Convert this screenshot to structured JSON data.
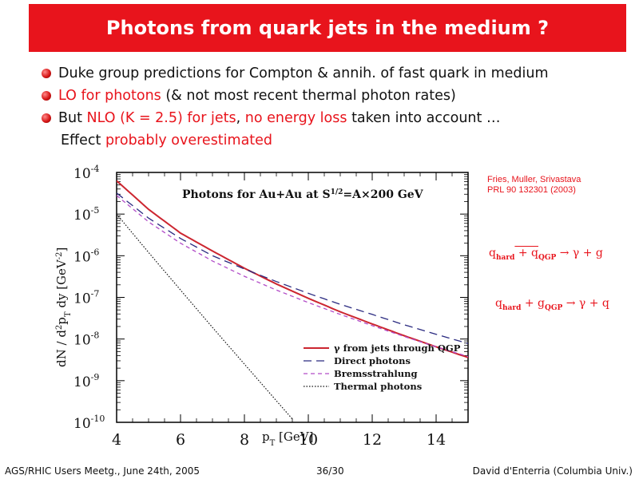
{
  "slide": {
    "title": "Photons from quark jets in the medium ?"
  },
  "bullets": [
    {
      "text": "Duke group predictions for Compton & annih. of fast quark in medium"
    },
    {
      "red": "LO for photons",
      "text": " (& not most recent thermal photon rates)"
    },
    {
      "prefix": "But ",
      "red1": "NLO (K = 2.5) for jets",
      "mid": ", ",
      "red2": "no energy loss",
      "suffix": " taken into account …"
    }
  ],
  "indent_line": {
    "prefix": "Effect ",
    "red": "probably overestimated"
  },
  "reference": {
    "line1": "Fries, Muller, Srivastava",
    "line2": "PRL 90 132301 (2003)"
  },
  "processes": {
    "p1_a": "q",
    "p1_a_sub": "hard",
    "p1_b": " + q",
    "p1_b_sub": "QGP",
    "p1_c": " → γ + g",
    "p2_a": "q",
    "p2_a_sub": "hard",
    "p2_b": " + g",
    "p2_b_sub": "QGP",
    "p2_c": " → γ + q"
  },
  "footer": {
    "left": "AGS/RHIC Users Meetg., June 24th, 2005",
    "page": "36/30",
    "right": "David d'Enterria (Columbia Univ.)"
  },
  "colors": {
    "accent": "#e8141c",
    "jets": "#cc2630",
    "direct": "#2a2a80",
    "brems": "#b24cc8",
    "thermal": "#111111"
  },
  "chart_data": {
    "type": "line",
    "title": "Photons for Au+Au at S^1/2=A×200 GeV",
    "xlabel": "pT [GeV]",
    "ylabel": "dN / d2pT dy [GeV-2]",
    "xlim": [
      4,
      15
    ],
    "ylim_log10": [
      -10,
      -4
    ],
    "x_ticks": [
      "4",
      "6",
      "8",
      "10",
      "12",
      "14"
    ],
    "y_ticks": [
      "10-4",
      "10-5",
      "10-6",
      "10-7",
      "10-8",
      "10-9",
      "10-10"
    ],
    "log_y": true,
    "legend_position": "bottom-right",
    "series": [
      {
        "name": "γ from jets through QGP",
        "style": "solid",
        "x": [
          4,
          5,
          6,
          7,
          8,
          9,
          10,
          11,
          12,
          13,
          14,
          15
        ],
        "y": [
          6.3e-05,
          1.3e-05,
          3.5e-06,
          1.3e-06,
          5e-07,
          2.1e-07,
          9.5e-08,
          4.5e-08,
          2.3e-08,
          1.2e-08,
          6.5e-09,
          3.6e-09
        ]
      },
      {
        "name": "Direct photons",
        "style": "dash",
        "x": [
          4,
          5,
          6,
          7,
          8,
          9,
          10,
          11,
          12,
          13,
          14,
          15
        ],
        "y": [
          3.2e-05,
          8e-06,
          2.6e-06,
          1e-06,
          4.8e-07,
          2.4e-07,
          1.25e-07,
          6.8e-08,
          3.9e-08,
          2.2e-08,
          1.3e-08,
          7.8e-09
        ]
      },
      {
        "name": "Bremsstrahlung",
        "style": "dash-short",
        "x": [
          4,
          5,
          6,
          7,
          8,
          9,
          10,
          11,
          12,
          13,
          14,
          15
        ],
        "y": [
          2.8e-05,
          6.5e-06,
          2e-06,
          7.5e-07,
          3.2e-07,
          1.5e-07,
          7.5e-08,
          3.9e-08,
          2.1e-08,
          1.15e-08,
          6.5e-09,
          3.8e-09
        ]
      },
      {
        "name": "Thermal photons",
        "style": "dot",
        "x": [
          4,
          5,
          6,
          7,
          8,
          9,
          9.5
        ],
        "y": [
          1e-05,
          1.2e-06,
          1.5e-07,
          1.9e-08,
          2.5e-09,
          3.3e-10,
          1.2e-10
        ]
      }
    ]
  }
}
